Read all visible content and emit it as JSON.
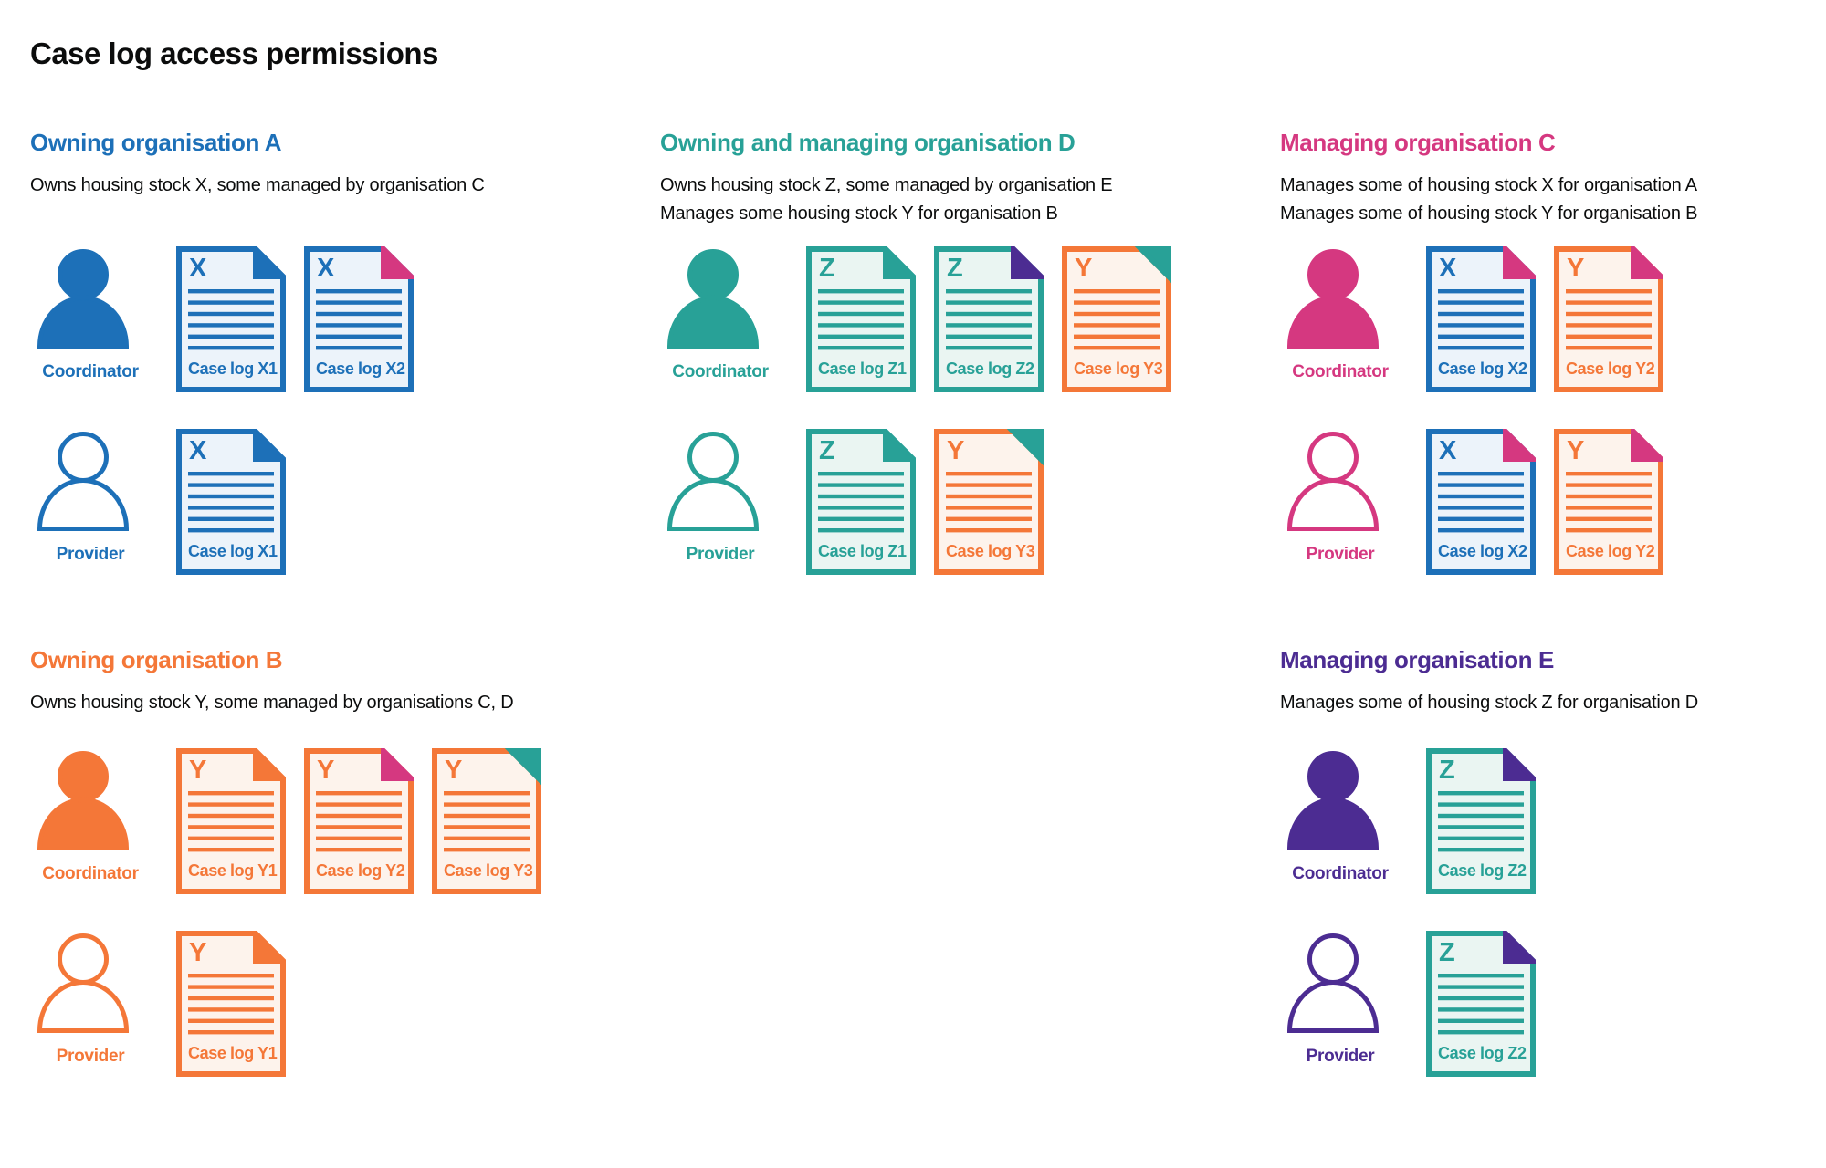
{
  "page": {
    "title": "Case log access permissions"
  },
  "colors": {
    "blue": "#1d70b8",
    "teal": "#28a197",
    "pink": "#d53880",
    "orange": "#f47738",
    "purple": "#4c2c92",
    "text": "#0b0c0c",
    "background": "#ffffff"
  },
  "tints": {
    "blue": "#ecf3fa",
    "teal": "#eaf5f2",
    "orange": "#fdf3ec"
  },
  "roles": {
    "coordinator": "Coordinator",
    "provider": "Provider"
  },
  "icons": {
    "coordinator": "person-filled-icon",
    "provider": "person-outline-icon",
    "document": "case-log-document-icon",
    "fold": "folded-corner-icon"
  },
  "sections": [
    {
      "id": "a",
      "heading": "Owning organisation A",
      "color": "blue",
      "description": [
        "Owns housing stock X, some managed by organisation C"
      ],
      "rows": [
        {
          "role": "coordinator",
          "docs": [
            {
              "letter": "X",
              "caption": "Case log X1",
              "color": "blue",
              "fold_color": "blue",
              "fold_style": "dogear"
            },
            {
              "letter": "X",
              "caption": "Case log X2",
              "color": "blue",
              "fold_color": "pink",
              "fold_style": "dogear"
            }
          ]
        },
        {
          "role": "provider",
          "docs": [
            {
              "letter": "X",
              "caption": "Case log X1",
              "color": "blue",
              "fold_color": "blue",
              "fold_style": "dogear"
            }
          ]
        }
      ]
    },
    {
      "id": "d",
      "heading": "Owning and managing organisation D",
      "color": "teal",
      "description": [
        "Owns housing stock Z, some managed by organisation E",
        "Manages some housing stock Y for organisation B"
      ],
      "rows": [
        {
          "role": "coordinator",
          "docs": [
            {
              "letter": "Z",
              "caption": "Case log Z1",
              "color": "teal",
              "fold_color": "teal",
              "fold_style": "dogear"
            },
            {
              "letter": "Z",
              "caption": "Case log Z2",
              "color": "teal",
              "fold_color": "purple",
              "fold_style": "dogear"
            },
            {
              "letter": "Y",
              "caption": "Case log Y3",
              "color": "orange",
              "fold_color": "teal",
              "fold_style": "corner"
            }
          ]
        },
        {
          "role": "provider",
          "docs": [
            {
              "letter": "Z",
              "caption": "Case log Z1",
              "color": "teal",
              "fold_color": "teal",
              "fold_style": "dogear"
            },
            {
              "letter": "Y",
              "caption": "Case log Y3",
              "color": "orange",
              "fold_color": "teal",
              "fold_style": "corner"
            }
          ]
        }
      ]
    },
    {
      "id": "c",
      "heading": "Managing organisation C",
      "color": "pink",
      "description": [
        "Manages some of housing stock X for organisation A",
        "Manages some of housing stock Y for organisation B"
      ],
      "rows": [
        {
          "role": "coordinator",
          "docs": [
            {
              "letter": "X",
              "caption": "Case log X2",
              "color": "blue",
              "fold_color": "pink",
              "fold_style": "dogear"
            },
            {
              "letter": "Y",
              "caption": "Case log Y2",
              "color": "orange",
              "fold_color": "pink",
              "fold_style": "dogear"
            }
          ]
        },
        {
          "role": "provider",
          "docs": [
            {
              "letter": "X",
              "caption": "Case log X2",
              "color": "blue",
              "fold_color": "pink",
              "fold_style": "dogear"
            },
            {
              "letter": "Y",
              "caption": "Case log Y2",
              "color": "orange",
              "fold_color": "pink",
              "fold_style": "dogear"
            }
          ]
        }
      ]
    },
    {
      "id": "b",
      "heading": "Owning organisation B",
      "color": "orange",
      "description": [
        "Owns housing stock Y, some managed by organisations C, D"
      ],
      "rows": [
        {
          "role": "coordinator",
          "docs": [
            {
              "letter": "Y",
              "caption": "Case log Y1",
              "color": "orange",
              "fold_color": "orange",
              "fold_style": "dogear"
            },
            {
              "letter": "Y",
              "caption": "Case log Y2",
              "color": "orange",
              "fold_color": "pink",
              "fold_style": "dogear"
            },
            {
              "letter": "Y",
              "caption": "Case log Y3",
              "color": "orange",
              "fold_color": "teal",
              "fold_style": "corner"
            }
          ]
        },
        {
          "role": "provider",
          "docs": [
            {
              "letter": "Y",
              "caption": "Case log Y1",
              "color": "orange",
              "fold_color": "orange",
              "fold_style": "dogear"
            }
          ]
        }
      ]
    },
    {
      "id": "e",
      "heading": "Managing organisation E",
      "color": "purple",
      "description": [
        "Manages some of housing stock Z for organisation D"
      ],
      "rows": [
        {
          "role": "coordinator",
          "docs": [
            {
              "letter": "Z",
              "caption": "Case log Z2",
              "color": "teal",
              "fold_color": "purple",
              "fold_style": "dogear"
            }
          ]
        },
        {
          "role": "provider",
          "docs": [
            {
              "letter": "Z",
              "caption": "Case log Z2",
              "color": "teal",
              "fold_color": "purple",
              "fold_style": "dogear"
            }
          ]
        }
      ]
    }
  ]
}
